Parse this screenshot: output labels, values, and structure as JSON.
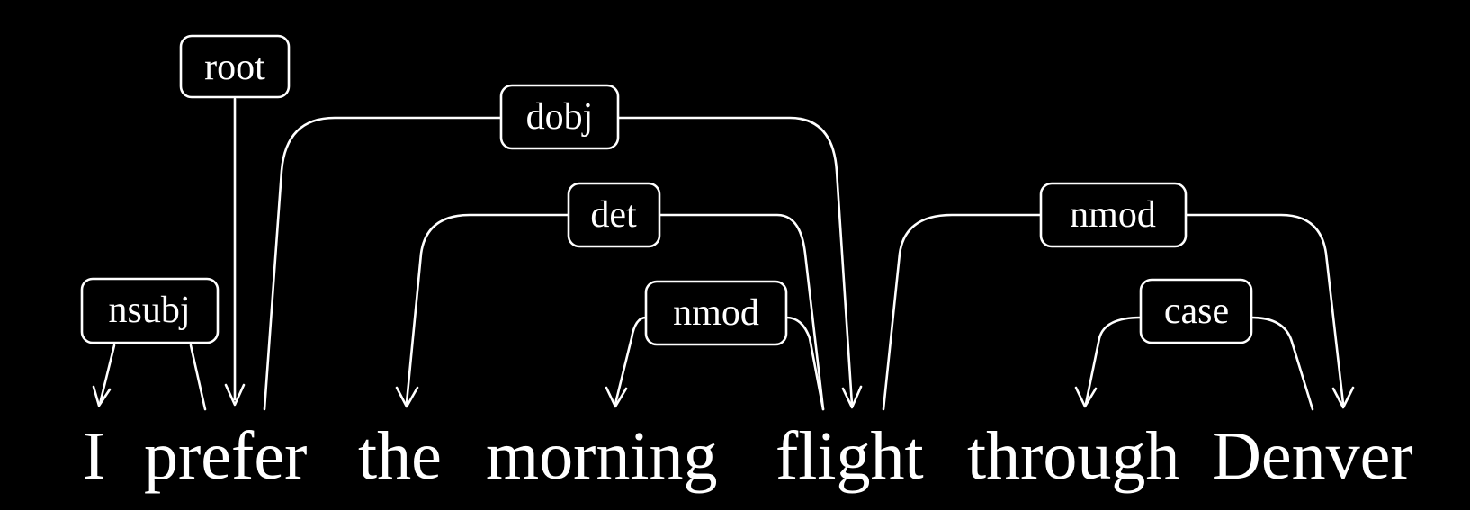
{
  "colors": {
    "background": "#000000",
    "foreground": "#ffffff"
  },
  "sentence": {
    "words": [
      "I",
      "prefer",
      "the",
      "morning",
      "flight",
      "through",
      "Denver"
    ]
  },
  "dependencies": [
    {
      "label": "root",
      "head": null,
      "dependent": 1
    },
    {
      "label": "nsubj",
      "head": 1,
      "dependent": 0
    },
    {
      "label": "dobj",
      "head": 1,
      "dependent": 4
    },
    {
      "label": "det",
      "head": 4,
      "dependent": 2
    },
    {
      "label": "nmod",
      "head": 4,
      "dependent": 3
    },
    {
      "label": "nmod",
      "head": 4,
      "dependent": 6
    },
    {
      "label": "case",
      "head": 6,
      "dependent": 5
    }
  ]
}
